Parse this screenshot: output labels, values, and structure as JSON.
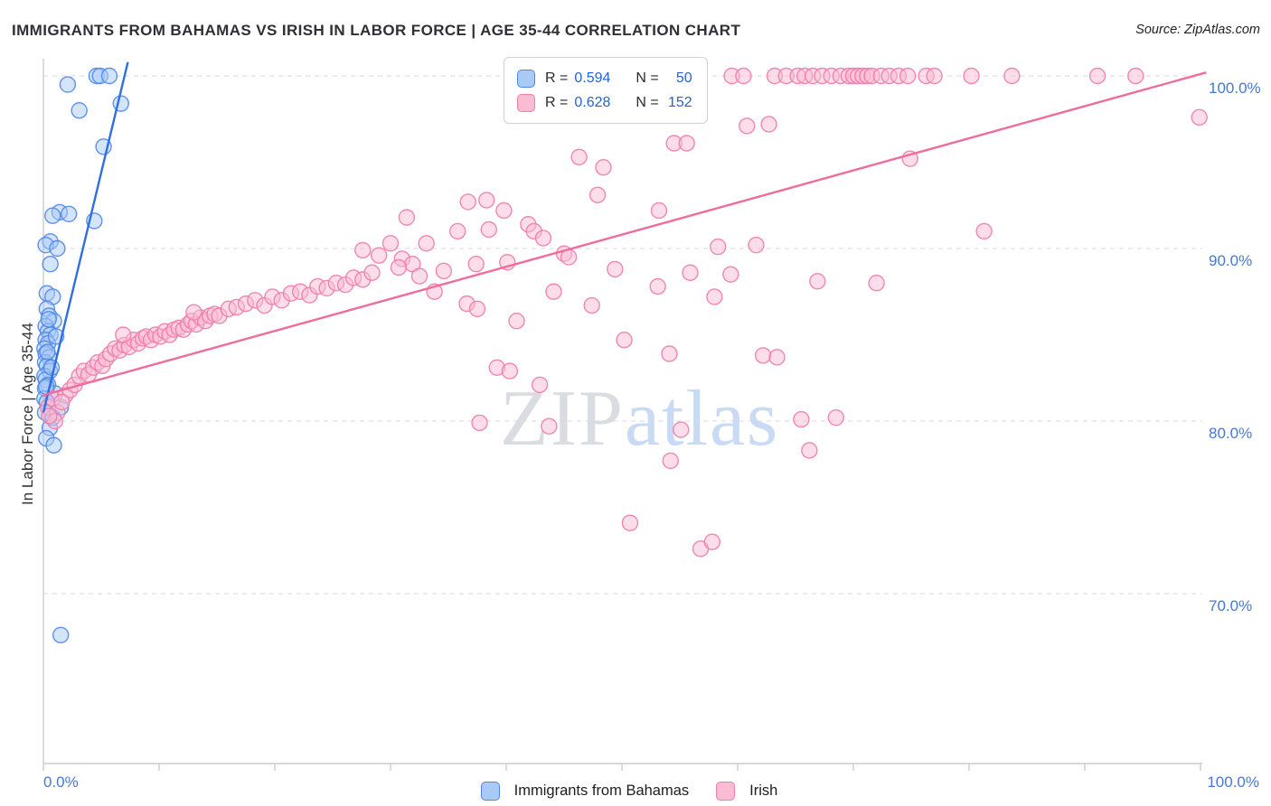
{
  "header": {
    "title": "IMMIGRANTS FROM BAHAMAS VS IRISH IN LABOR FORCE | AGE 35-44 CORRELATION CHART",
    "source": "Source: ZipAtlas.com"
  },
  "watermark": {
    "part1": "ZIP",
    "part2": "atlas"
  },
  "legend_box": {
    "rows": [
      {
        "series": "Immigrants from Bahamas",
        "r_label": "R =",
        "r_value": "0.594",
        "n_label": "N =",
        "n_value": "50"
      },
      {
        "series": "Irish",
        "r_label": "R =",
        "r_value": "0.628",
        "n_label": "N =",
        "n_value": "152"
      }
    ]
  },
  "bottom_legend": [
    {
      "label": "Immigrants from Bahamas"
    },
    {
      "label": "Irish"
    }
  ],
  "chart_data": {
    "type": "scatter",
    "title": "IMMIGRANTS FROM BAHAMAS VS IRISH IN LABOR FORCE | AGE 35-44 CORRELATION CHART",
    "xlabel": "",
    "ylabel": "In Labor Force | Age 35-44",
    "x_units": "%",
    "y_units": "%",
    "xlim": [
      0,
      100
    ],
    "ylim": [
      60,
      101
    ],
    "grid": "horizontal-dashed",
    "legend_position": "top-center",
    "axes": {
      "y_ticks": [
        {
          "value": 100,
          "label": "100.0%"
        },
        {
          "value": 90,
          "label": "90.0%"
        },
        {
          "value": 80,
          "label": "80.0%"
        },
        {
          "value": 70,
          "label": "70.0%"
        }
      ],
      "x_end_labels": [
        {
          "value": 0,
          "label": "0.0%"
        },
        {
          "value": 100,
          "label": "100.0%"
        }
      ]
    },
    "series": [
      {
        "name": "Immigrants from Bahamas",
        "R": 0.594,
        "N": 50,
        "stroke": "#4f87e8",
        "fill": "#a9c9f7",
        "points": [
          [
            1.5,
            67.6
          ],
          [
            2.1,
            99.5
          ],
          [
            3.1,
            98.0
          ],
          [
            4.6,
            100.0
          ],
          [
            4.9,
            100.0
          ],
          [
            5.7,
            100.0
          ],
          [
            6.7,
            98.4
          ],
          [
            5.2,
            95.9
          ],
          [
            4.4,
            91.6
          ],
          [
            1.4,
            92.1
          ],
          [
            0.8,
            91.9
          ],
          [
            2.2,
            92.0
          ],
          [
            0.6,
            90.4
          ],
          [
            0.2,
            90.2
          ],
          [
            1.2,
            90.0
          ],
          [
            0.6,
            89.1
          ],
          [
            0.3,
            87.4
          ],
          [
            0.8,
            87.2
          ],
          [
            0.3,
            86.5
          ],
          [
            0.5,
            86.1
          ],
          [
            0.9,
            85.8
          ],
          [
            0.2,
            85.5
          ],
          [
            0.4,
            85.2
          ],
          [
            0.6,
            85.0
          ],
          [
            0.2,
            84.7
          ],
          [
            0.4,
            84.5
          ],
          [
            0.1,
            84.2
          ],
          [
            0.2,
            83.9
          ],
          [
            0.5,
            83.7
          ],
          [
            0.15,
            83.4
          ],
          [
            0.3,
            83.2
          ],
          [
            0.55,
            82.9
          ],
          [
            0.1,
            82.6
          ],
          [
            0.2,
            82.4
          ],
          [
            0.4,
            82.1
          ],
          [
            0.15,
            81.9
          ],
          [
            1.0,
            81.6
          ],
          [
            0.1,
            81.3
          ],
          [
            0.3,
            81.1
          ],
          [
            1.5,
            80.8
          ],
          [
            0.15,
            80.5
          ],
          [
            0.55,
            79.6
          ],
          [
            0.25,
            79.0
          ],
          [
            0.9,
            78.6
          ],
          [
            0.35,
            84.0
          ],
          [
            0.7,
            83.1
          ],
          [
            0.25,
            82.0
          ],
          [
            1.1,
            84.9
          ],
          [
            0.45,
            85.9
          ],
          [
            0.8,
            80.2
          ]
        ]
      },
      {
        "name": "Irish",
        "R": 0.628,
        "N": 152,
        "stroke": "#f07ca8",
        "fill": "#f9bcd3",
        "points": [
          [
            0.4,
            80.8
          ],
          [
            0.8,
            81.3
          ],
          [
            1.2,
            80.5
          ],
          [
            1.9,
            81.5
          ],
          [
            2.3,
            81.8
          ],
          [
            2.7,
            82.1
          ],
          [
            1.0,
            80.0
          ],
          [
            0.5,
            80.3
          ],
          [
            1.6,
            81.1
          ],
          [
            3.1,
            82.6
          ],
          [
            3.5,
            82.9
          ],
          [
            3.9,
            82.7
          ],
          [
            4.3,
            83.1
          ],
          [
            4.7,
            83.4
          ],
          [
            5.1,
            83.2
          ],
          [
            5.4,
            83.6
          ],
          [
            5.8,
            83.9
          ],
          [
            6.2,
            84.2
          ],
          [
            6.6,
            84.1
          ],
          [
            7.0,
            84.4
          ],
          [
            7.4,
            84.3
          ],
          [
            7.8,
            84.7
          ],
          [
            8.2,
            84.5
          ],
          [
            8.6,
            84.8
          ],
          [
            8.9,
            84.9
          ],
          [
            9.3,
            84.7
          ],
          [
            9.7,
            85.0
          ],
          [
            10.1,
            84.9
          ],
          [
            10.5,
            85.2
          ],
          [
            10.9,
            85.0
          ],
          [
            11.3,
            85.3
          ],
          [
            11.7,
            85.4
          ],
          [
            12.1,
            85.3
          ],
          [
            12.5,
            85.6
          ],
          [
            12.8,
            85.8
          ],
          [
            13.2,
            85.6
          ],
          [
            13.6,
            86.0
          ],
          [
            14.0,
            85.8
          ],
          [
            14.4,
            86.1
          ],
          [
            14.8,
            86.2
          ],
          [
            15.2,
            86.1
          ],
          [
            16.0,
            86.5
          ],
          [
            16.7,
            86.6
          ],
          [
            17.5,
            86.8
          ],
          [
            18.3,
            87.0
          ],
          [
            19.1,
            86.7
          ],
          [
            19.8,
            87.2
          ],
          [
            20.6,
            87.0
          ],
          [
            21.4,
            87.4
          ],
          [
            22.2,
            87.5
          ],
          [
            23.0,
            87.3
          ],
          [
            23.7,
            87.8
          ],
          [
            24.5,
            87.7
          ],
          [
            25.3,
            88.0
          ],
          [
            26.1,
            87.9
          ],
          [
            26.8,
            88.3
          ],
          [
            27.6,
            88.2
          ],
          [
            28.4,
            88.6
          ],
          [
            13.0,
            86.3
          ],
          [
            6.9,
            85.0
          ],
          [
            29.0,
            89.6
          ],
          [
            30.0,
            90.3
          ],
          [
            31.0,
            89.4
          ],
          [
            31.4,
            91.8
          ],
          [
            31.9,
            89.1
          ],
          [
            33.1,
            90.3
          ],
          [
            27.6,
            89.9
          ],
          [
            30.7,
            88.9
          ],
          [
            32.5,
            88.4
          ],
          [
            33.8,
            87.5
          ],
          [
            34.6,
            88.7
          ],
          [
            35.8,
            91.0
          ],
          [
            36.6,
            86.8
          ],
          [
            36.7,
            92.7
          ],
          [
            37.4,
            89.1
          ],
          [
            37.5,
            86.5
          ],
          [
            37.7,
            79.9
          ],
          [
            38.3,
            92.8
          ],
          [
            38.5,
            91.1
          ],
          [
            39.2,
            83.1
          ],
          [
            39.8,
            92.2
          ],
          [
            40.1,
            89.2
          ],
          [
            40.3,
            82.9
          ],
          [
            40.9,
            85.8
          ],
          [
            41.9,
            91.4
          ],
          [
            42.4,
            91.0
          ],
          [
            42.9,
            82.1
          ],
          [
            43.2,
            90.6
          ],
          [
            43.7,
            79.7
          ],
          [
            44.1,
            87.5
          ],
          [
            45.0,
            89.7
          ],
          [
            45.4,
            89.5
          ],
          [
            46.3,
            95.3
          ],
          [
            47.4,
            86.7
          ],
          [
            47.9,
            93.1
          ],
          [
            48.4,
            94.7
          ],
          [
            49.4,
            88.8
          ],
          [
            50.2,
            84.7
          ],
          [
            50.7,
            74.1
          ],
          [
            51.8,
            97.8
          ],
          [
            53.1,
            87.8
          ],
          [
            53.2,
            92.2
          ],
          [
            54.1,
            83.9
          ],
          [
            54.2,
            77.7
          ],
          [
            54.5,
            96.1
          ],
          [
            55.1,
            79.5
          ],
          [
            55.6,
            96.1
          ],
          [
            55.9,
            88.6
          ],
          [
            56.8,
            72.6
          ],
          [
            57.8,
            73.0
          ],
          [
            58.0,
            87.2
          ],
          [
            58.3,
            90.1
          ],
          [
            59.4,
            88.5
          ],
          [
            60.8,
            97.1
          ],
          [
            62.7,
            97.2
          ],
          [
            59.5,
            100.0
          ],
          [
            60.5,
            100.0
          ],
          [
            63.2,
            100.0
          ],
          [
            64.2,
            100.0
          ],
          [
            65.2,
            100.0
          ],
          [
            65.8,
            100.0
          ],
          [
            66.5,
            100.0
          ],
          [
            67.3,
            100.0
          ],
          [
            68.1,
            100.0
          ],
          [
            68.9,
            100.0
          ],
          [
            69.6,
            100.0
          ],
          [
            70.0,
            100.0
          ],
          [
            70.4,
            100.0
          ],
          [
            70.8,
            100.0
          ],
          [
            71.2,
            100.0
          ],
          [
            71.6,
            100.0
          ],
          [
            72.4,
            100.0
          ],
          [
            73.1,
            100.0
          ],
          [
            73.9,
            100.0
          ],
          [
            74.7,
            100.0
          ],
          [
            76.3,
            100.0
          ],
          [
            77.0,
            100.0
          ],
          [
            80.2,
            100.0
          ],
          [
            83.7,
            100.0
          ],
          [
            91.1,
            100.0
          ],
          [
            94.4,
            100.0
          ],
          [
            61.6,
            90.2
          ],
          [
            62.2,
            83.8
          ],
          [
            63.4,
            83.7
          ],
          [
            65.5,
            80.1
          ],
          [
            66.2,
            78.3
          ],
          [
            66.9,
            88.1
          ],
          [
            68.5,
            80.2
          ],
          [
            74.9,
            95.2
          ],
          [
            81.3,
            91.0
          ],
          [
            99.9,
            97.6
          ],
          [
            72.0,
            88.0
          ]
        ]
      }
    ],
    "trends": [
      {
        "series": "Immigrants from Bahamas",
        "color": "#2f6fe0",
        "x1": 0,
        "y1": 80.5,
        "x2": 7.3,
        "y2": 100.8
      },
      {
        "series": "Irish",
        "color": "#ed6d9d",
        "x1": 0,
        "y1": 81.5,
        "x2": 100.5,
        "y2": 100.2
      }
    ]
  }
}
